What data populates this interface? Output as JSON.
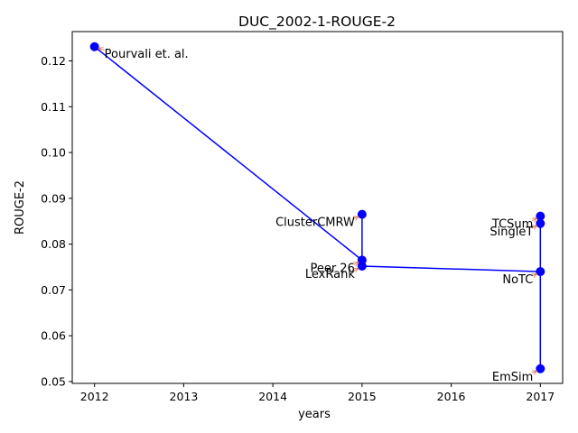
{
  "chart_data": {
    "type": "line",
    "title": "DUC_2002-1-ROUGE-2",
    "xlabel": "years",
    "ylabel": "ROUGE-2",
    "xlim": [
      2011.75,
      2017.25
    ],
    "ylim": [
      0.0496,
      0.1264
    ],
    "xticks": [
      2012,
      2013,
      2014,
      2015,
      2016,
      2017
    ],
    "yticks": [
      0.05,
      0.06,
      0.07,
      0.08,
      0.09,
      0.1,
      0.11,
      0.12
    ],
    "grid": false,
    "line_color": "#0000ff",
    "marker_color": "#0000ff",
    "arrow_color": "#e07050",
    "points": [
      {
        "x": 2012,
        "y": 0.1231,
        "label": "Pourvali et. al.",
        "side": "right"
      },
      {
        "x": 2015,
        "y": 0.0765,
        "label": "Peer 26",
        "side": "left"
      },
      {
        "x": 2015,
        "y": 0.0865,
        "label": "ClusterCMRW",
        "side": "left"
      },
      {
        "x": 2015,
        "y": 0.0752,
        "label": "LexRank",
        "side": "left"
      },
      {
        "x": 2017,
        "y": 0.074,
        "label": "NoTC",
        "side": "left"
      },
      {
        "x": 2017,
        "y": 0.0845,
        "label": "SingleT",
        "side": "left"
      },
      {
        "x": 2017,
        "y": 0.0861,
        "label": "TCSum",
        "side": "left"
      },
      {
        "x": 2017,
        "y": 0.0528,
        "label": "EmSim",
        "side": "left"
      }
    ]
  }
}
